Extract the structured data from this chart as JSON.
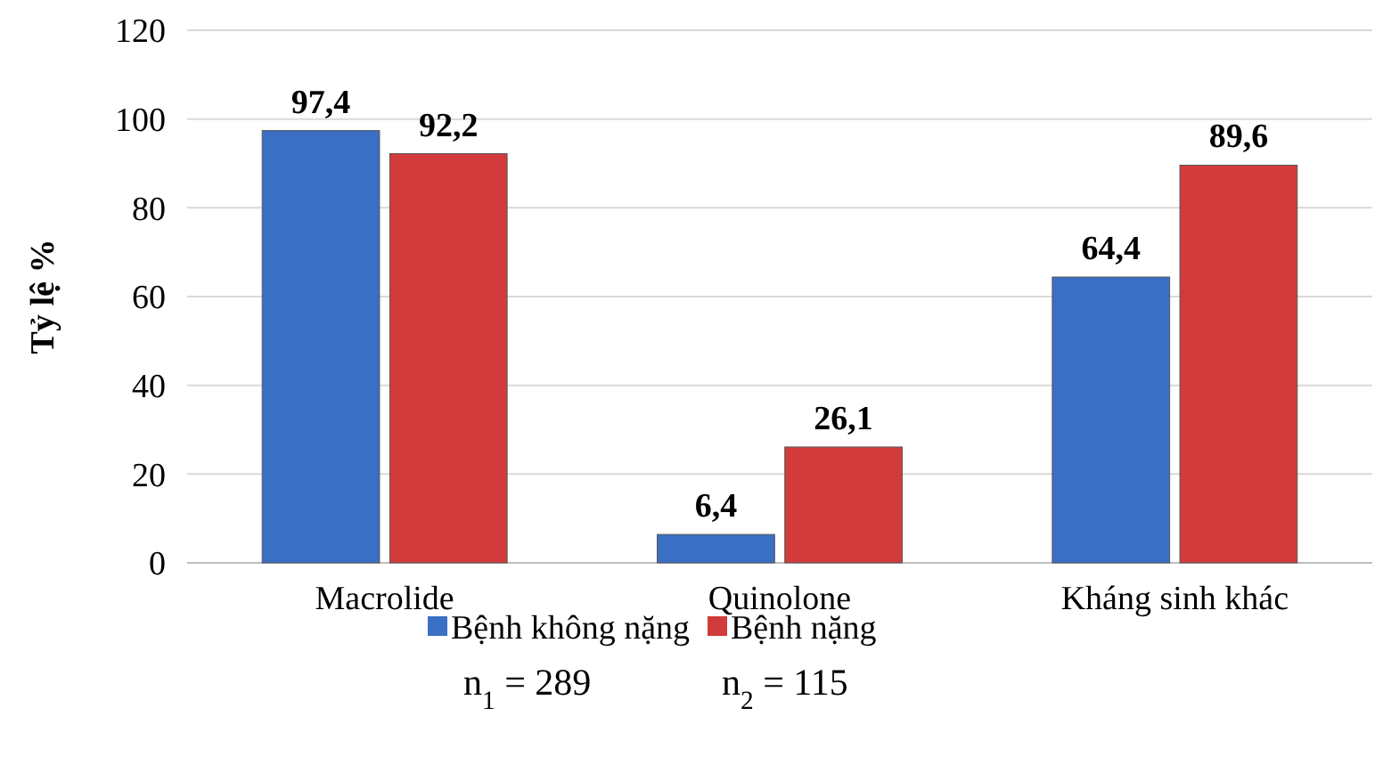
{
  "chart_data": {
    "type": "bar",
    "ylabel": "Tỷ lệ %",
    "categories": [
      "Macrolide",
      "Quinolone",
      "Kháng sinh khác"
    ],
    "series": [
      {
        "name": "Bệnh không nặng",
        "color": "#3a6fc4",
        "values": [
          97.4,
          6.4,
          64.4
        ],
        "value_labels": [
          "97,4",
          "6,4",
          "64,4"
        ]
      },
      {
        "name": "Bệnh nặng",
        "color": "#d13b3b",
        "values": [
          92.2,
          26.1,
          89.6
        ],
        "value_labels": [
          "92,2",
          "26,1",
          "89,6"
        ]
      }
    ],
    "ylim": [
      0,
      120
    ],
    "yticks": [
      0,
      20,
      40,
      60,
      80,
      100,
      120
    ],
    "grid": "y",
    "legend": "bottom",
    "annotations": [
      "n$_{1}$ = 289",
      "n$_{2}$ = 115"
    ]
  }
}
